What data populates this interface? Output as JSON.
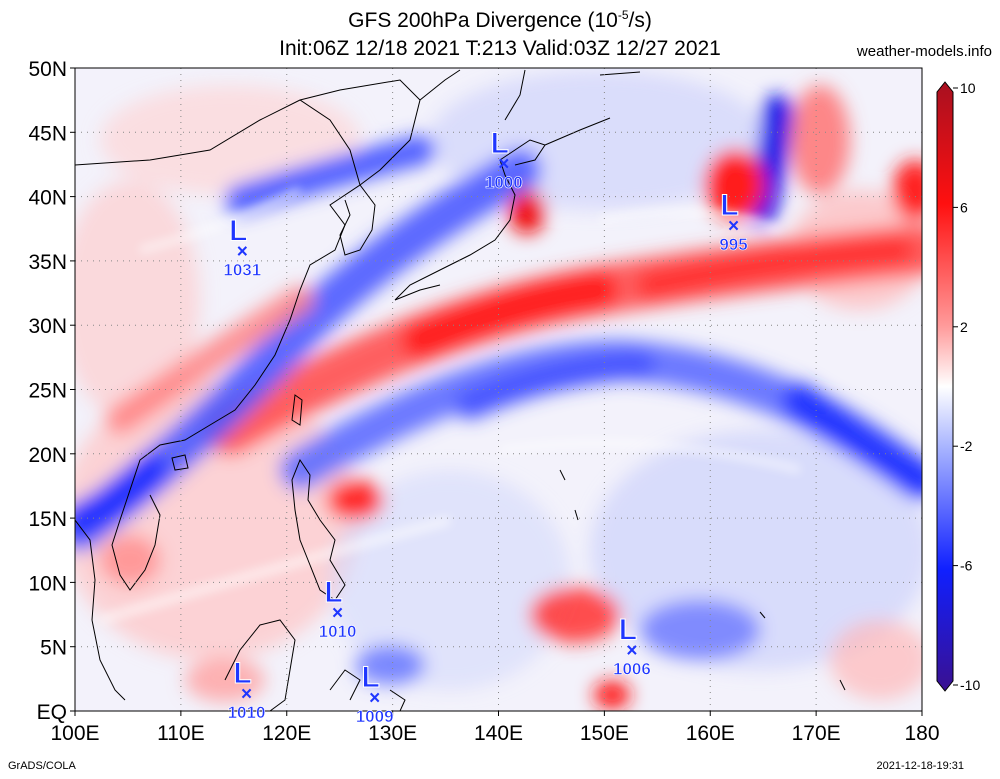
{
  "header": {
    "title_main": "GFS 200hPa Divergence (10",
    "title_exp": "-5",
    "title_unit": "/s)",
    "subtitle": "Init:06Z 12/18 2021 T:213 Valid:03Z 12/27 2021",
    "site": "weather-models.info"
  },
  "footer": {
    "left": "GrADS/COLA",
    "right": "2021-12-18-19:31"
  },
  "map": {
    "lon_range": [
      100,
      180
    ],
    "lat_range": [
      0,
      50
    ],
    "lat_labels": [
      {
        "lat": 50,
        "text": "50N"
      },
      {
        "lat": 45,
        "text": "45N"
      },
      {
        "lat": 40,
        "text": "40N"
      },
      {
        "lat": 35,
        "text": "35N"
      },
      {
        "lat": 30,
        "text": "30N"
      },
      {
        "lat": 25,
        "text": "25N"
      },
      {
        "lat": 20,
        "text": "20N"
      },
      {
        "lat": 15,
        "text": "15N"
      },
      {
        "lat": 10,
        "text": "10N"
      },
      {
        "lat": 5,
        "text": "5N"
      },
      {
        "lat": 0,
        "text": "EQ"
      }
    ],
    "lon_labels": [
      {
        "lon": 100,
        "text": "100E"
      },
      {
        "lon": 110,
        "text": "110E"
      },
      {
        "lon": 120,
        "text": "120E"
      },
      {
        "lon": 130,
        "text": "130E"
      },
      {
        "lon": 140,
        "text": "140E"
      },
      {
        "lon": 150,
        "text": "150E"
      },
      {
        "lon": 160,
        "text": "160E"
      },
      {
        "lon": 170,
        "text": "170E"
      },
      {
        "lon": 180,
        "text": "180"
      }
    ],
    "lows": [
      {
        "lon": 140.5,
        "lat": 42.6,
        "letter": "L",
        "marker": "×",
        "value": "1000"
      },
      {
        "lon": 162.2,
        "lat": 37.8,
        "letter": "L",
        "marker": "×",
        "value": "995"
      },
      {
        "lon": 115.8,
        "lat": 35.8,
        "letter": "L",
        "marker": "×",
        "value": "1031"
      },
      {
        "lon": 124.8,
        "lat": 7.7,
        "letter": "L",
        "marker": "×",
        "value": "1010"
      },
      {
        "lon": 116.2,
        "lat": 1.4,
        "letter": "L",
        "marker": "×",
        "value": "1010"
      },
      {
        "lon": 128.3,
        "lat": 1.1,
        "letter": "L",
        "marker": "×",
        "value": "1009"
      },
      {
        "lon": 152.6,
        "lat": 4.8,
        "letter": "L",
        "marker": "×",
        "value": "1006"
      }
    ],
    "colors": {
      "strong_red": "#e8001a",
      "red": "#ff3a3a",
      "light_red": "#ffb0b0",
      "white": "#ffffff",
      "light_blue": "#b8c2ff",
      "blue": "#3848ff",
      "strong_blue": "#0010d8"
    }
  },
  "colorbar": {
    "min": -10,
    "max": 10,
    "labels": [
      {
        "value": 10,
        "text": "10"
      },
      {
        "value": 6,
        "text": "6"
      },
      {
        "value": 2,
        "text": "2"
      },
      {
        "value": -2,
        "text": "-2"
      },
      {
        "value": -6,
        "text": "-6"
      },
      {
        "value": -10,
        "text": "-10"
      }
    ]
  }
}
